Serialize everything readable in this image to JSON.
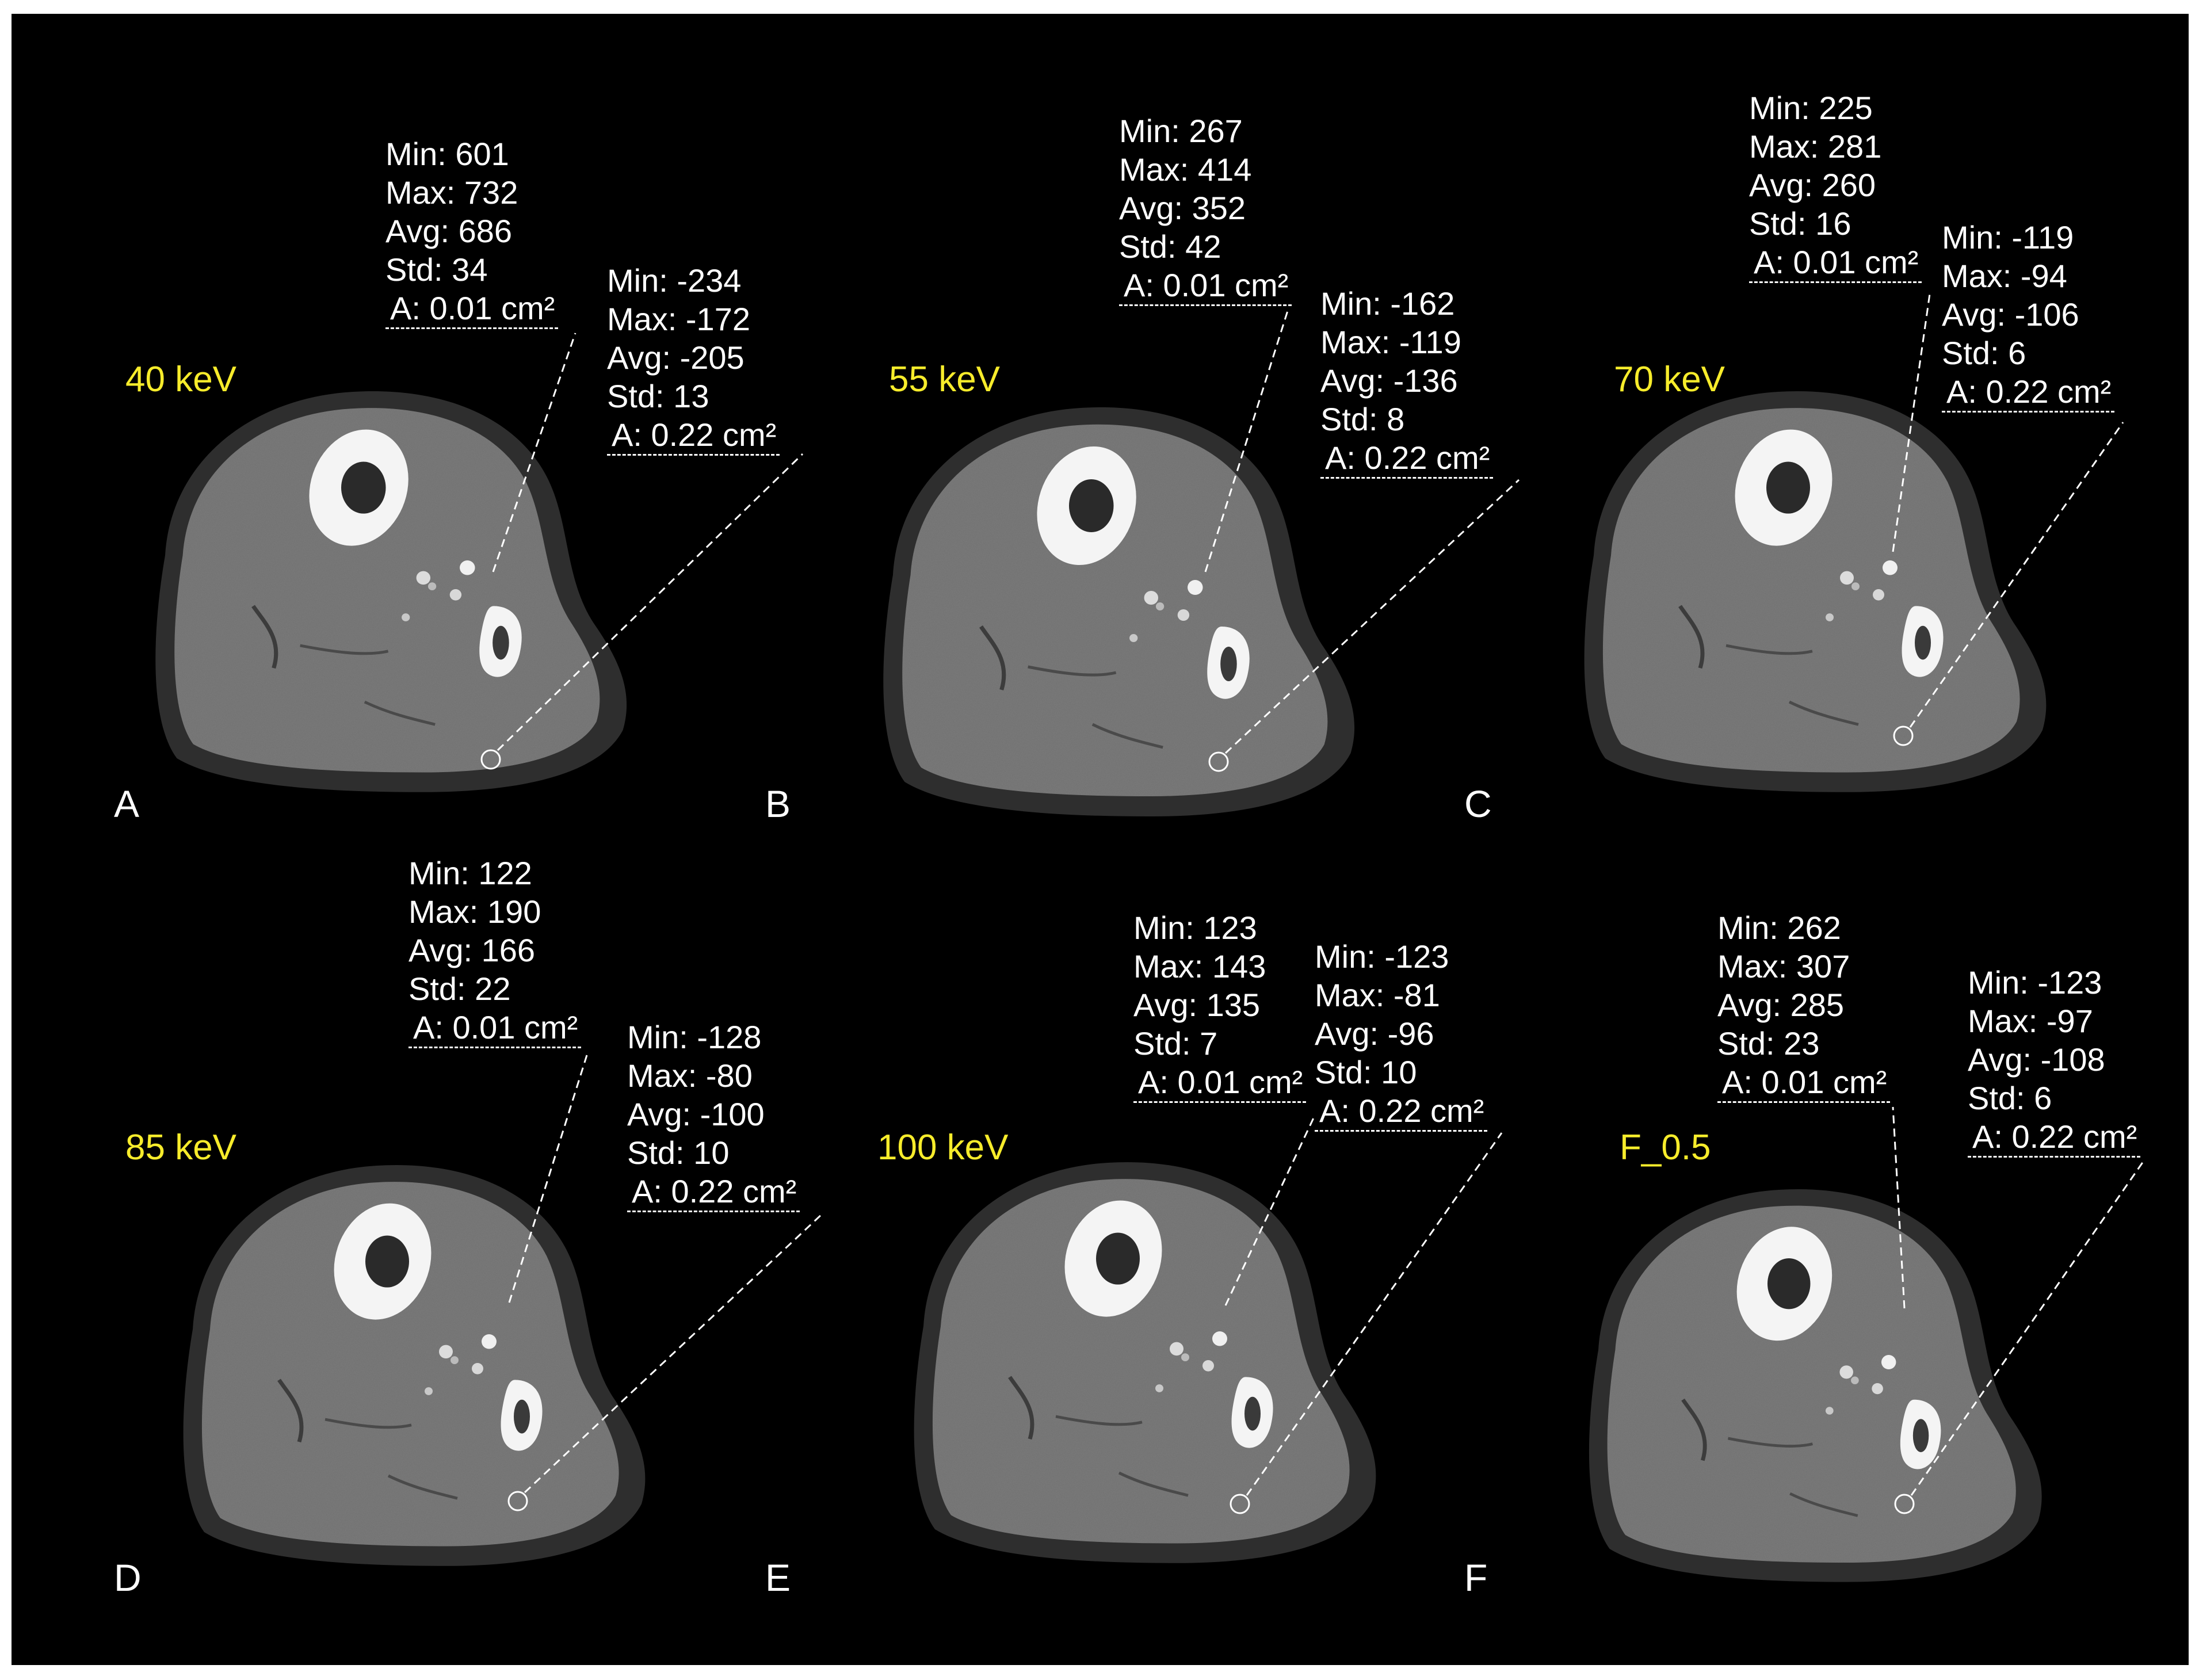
{
  "panels": [
    {
      "letter": "A",
      "energy": "40 keV",
      "roi1": {
        "min": "Min: 601",
        "max": "Max: 732",
        "avg": "Avg: 686",
        "std": "Std: 34",
        "area": "A: 0.01 cm²"
      },
      "roi2": {
        "min": "Min: -234",
        "max": "Max: -172",
        "avg": "Avg: -205",
        "std": "Std: 13",
        "area": "A: 0.22 cm²"
      }
    },
    {
      "letter": "B",
      "energy": "55 keV",
      "roi1": {
        "min": "Min: 267",
        "max": "Max: 414",
        "avg": "Avg: 352",
        "std": "Std: 42",
        "area": "A: 0.01 cm²"
      },
      "roi2": {
        "min": "Min: -162",
        "max": "Max: -119",
        "avg": "Avg: -136",
        "std": "Std: 8",
        "area": "A: 0.22 cm²"
      }
    },
    {
      "letter": "C",
      "energy": "70 keV",
      "roi1": {
        "min": "Min: 225",
        "max": "Max: 281",
        "avg": "Avg: 260",
        "std": "Std: 16",
        "area": "A: 0.01 cm²"
      },
      "roi2": {
        "min": "Min: -119",
        "max": "Max: -94",
        "avg": "Avg: -106",
        "std": "Std: 6",
        "area": "A: 0.22 cm²"
      }
    },
    {
      "letter": "D",
      "energy": "85 keV",
      "roi1": {
        "min": "Min: 122",
        "max": "Max: 190",
        "avg": "Avg: 166",
        "std": "Std: 22",
        "area": "A: 0.01 cm²"
      },
      "roi2": {
        "min": "Min: -128",
        "max": "Max: -80",
        "avg": "Avg: -100",
        "std": "Std: 10",
        "area": "A: 0.22 cm²"
      }
    },
    {
      "letter": "E",
      "energy": "100 keV",
      "roi1": {
        "min": "Min: 123",
        "max": "Max: 143",
        "avg": "Avg: 135",
        "std": "Std: 7",
        "area": "A: 0.01 cm²"
      },
      "roi2": {
        "min": "Min: -123",
        "max": "Max: -81",
        "avg": "Avg: -96",
        "std": "Std: 10",
        "area": "A: 0.22 cm²"
      }
    },
    {
      "letter": "F",
      "energy": "F_0.5",
      "roi1": {
        "min": "Min: 262",
        "max": "Max: 307",
        "avg": "Avg: 285",
        "std": "Std: 23",
        "area": "A: 0.01 cm²"
      },
      "roi2": {
        "min": "Min: -123",
        "max": "Max: -97",
        "avg": "Avg: -108",
        "std": "Std: 6",
        "area": "A: 0.22 cm²"
      }
    }
  ],
  "colors": {
    "background": "#000000",
    "energy_label": "#f7ec2b",
    "text": "#ffffff"
  }
}
